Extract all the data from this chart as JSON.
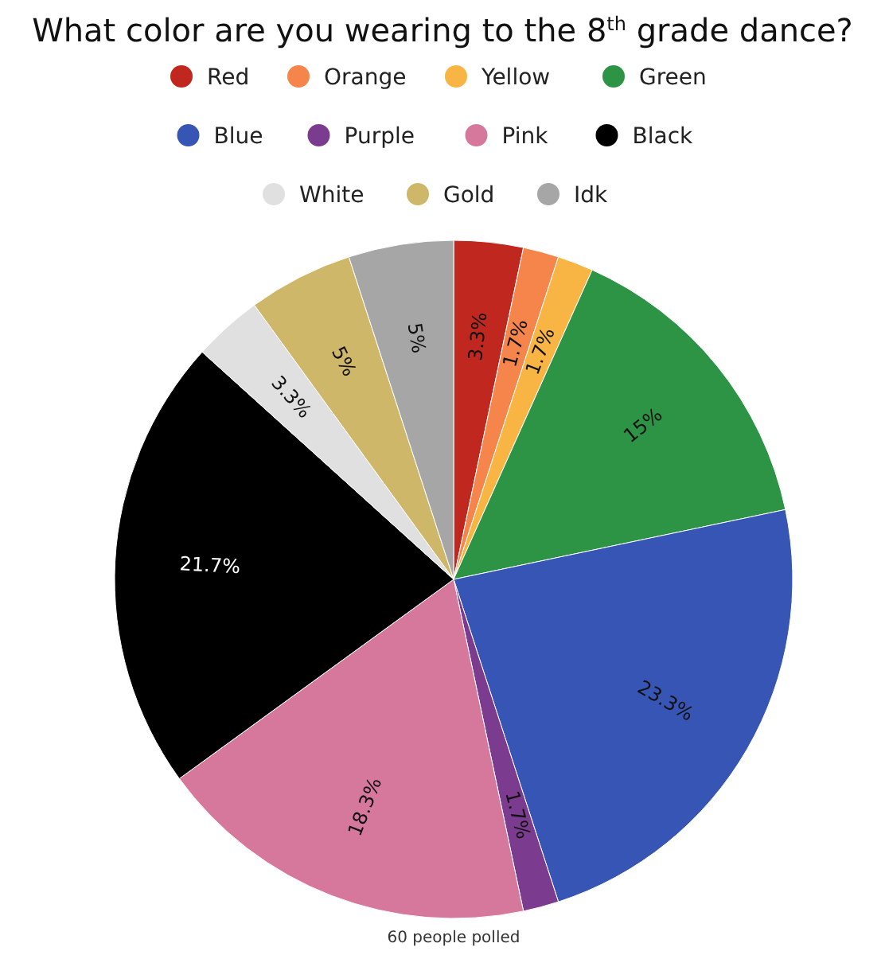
{
  "chart_data": {
    "type": "pie",
    "title": "What color are you wearing to the 8$^{th}$ grade dance?",
    "categories": [
      "Red",
      "Orange",
      "Yellow",
      "Green",
      "Blue",
      "Purple",
      "Pink",
      "Black",
      "White",
      "Gold",
      "Idk"
    ],
    "values": [
      3.3,
      1.7,
      1.7,
      15,
      23.3,
      1.7,
      18.3,
      21.7,
      3.3,
      5,
      5
    ],
    "colors": [
      "#c0281f",
      "#f5854a",
      "#f9b544",
      "#2e9445",
      "#3755b5",
      "#7b3b8e",
      "#d6789c",
      "#000000",
      "#e0e0e0",
      "#cfb76a",
      "#a6a6a6"
    ],
    "value_labels": [
      "3.3%",
      "1.7%",
      "1.7%",
      "15%",
      "23.3%",
      "1.7%",
      "18.3%",
      "21.7%",
      "3.3%",
      "5%",
      "5%"
    ],
    "legend": "top",
    "annotations": [
      "60 people polled"
    ]
  }
}
